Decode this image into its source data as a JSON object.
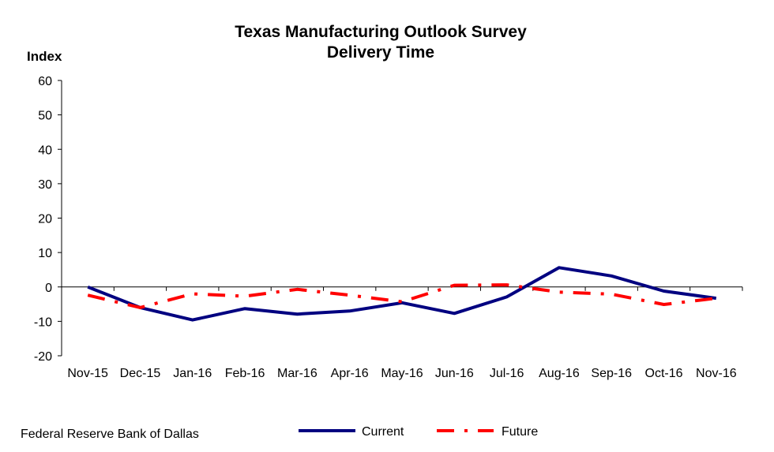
{
  "chart_data": {
    "type": "line",
    "title": "Texas Manufacturing Outlook Survey",
    "subtitle": "Delivery Time",
    "ylabel": "Index",
    "xlabel": "",
    "ylim": [
      -20,
      60
    ],
    "yticks": [
      -20,
      -10,
      0,
      10,
      20,
      30,
      40,
      50,
      60
    ],
    "categories": [
      "Nov-15",
      "Dec-15",
      "Jan-16",
      "Feb-16",
      "Mar-16",
      "Apr-16",
      "May-16",
      "Jun-16",
      "Jul-16",
      "Aug-16",
      "Sep-16",
      "Oct-16",
      "Nov-16"
    ],
    "series": [
      {
        "name": "Current",
        "color": "#000080",
        "style": "solid",
        "values": [
          0,
          -6.0,
          -9.6,
          -6.3,
          -7.9,
          -7.0,
          -4.6,
          -7.7,
          -2.9,
          5.6,
          3.2,
          -1.2,
          -3.3
        ]
      },
      {
        "name": "Future",
        "color": "#ff0000",
        "style": "dash-dot",
        "values": [
          -2.4,
          -6.0,
          -2.0,
          -2.7,
          -0.7,
          -2.4,
          -4.3,
          0.5,
          0.6,
          -1.5,
          -2.1,
          -5.1,
          -3.3
        ]
      }
    ],
    "grid": false,
    "legend_position": "bottom-center"
  },
  "source": "Federal Reserve Bank of Dallas"
}
